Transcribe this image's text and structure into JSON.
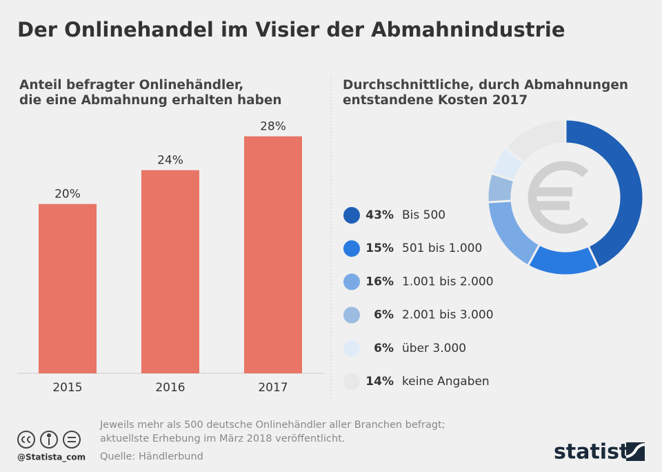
{
  "title": "Der Onlinehandel im Visier der Abmahnindustrie",
  "chart_data": [
    {
      "type": "bar",
      "title": [
        "Anteil befragter Onlinehändler,",
        "die eine Abmahnung erhalten haben"
      ],
      "categories": [
        "2015",
        "2016",
        "2017"
      ],
      "values": [
        20,
        24,
        28
      ],
      "value_labels": [
        "20%",
        "24%",
        "28%"
      ],
      "color": "#e87565",
      "ylim": [
        0,
        30
      ]
    },
    {
      "type": "donut",
      "title": [
        "Durchschnittliche, durch Abmahnungen",
        "entstandene Kosten 2017"
      ],
      "categories": [
        "Bis 500",
        "501 bis 1.000",
        "1.001 bis 2.000",
        "2.001 bis 3.000",
        "über 3.000",
        "keine Angaben"
      ],
      "values": [
        43,
        15,
        16,
        6,
        6,
        14
      ],
      "value_labels": [
        "43%",
        "15%",
        "16%",
        "6%",
        "6%",
        "14%"
      ],
      "colors": [
        "#1f5fb5",
        "#2a7be0",
        "#7aaae6",
        "#9bbce0",
        "#e0ebf8",
        "#e8e8e8"
      ]
    }
  ],
  "notes": [
    "Jeweils mehr als 500 deutsche Onlinehändler aller Branchen befragt;",
    "aktuellste Erhebung im März 2018 veröffentlicht."
  ],
  "source": "Quelle: Händlerbund",
  "handle": "@Statista_com",
  "brand": "statista"
}
